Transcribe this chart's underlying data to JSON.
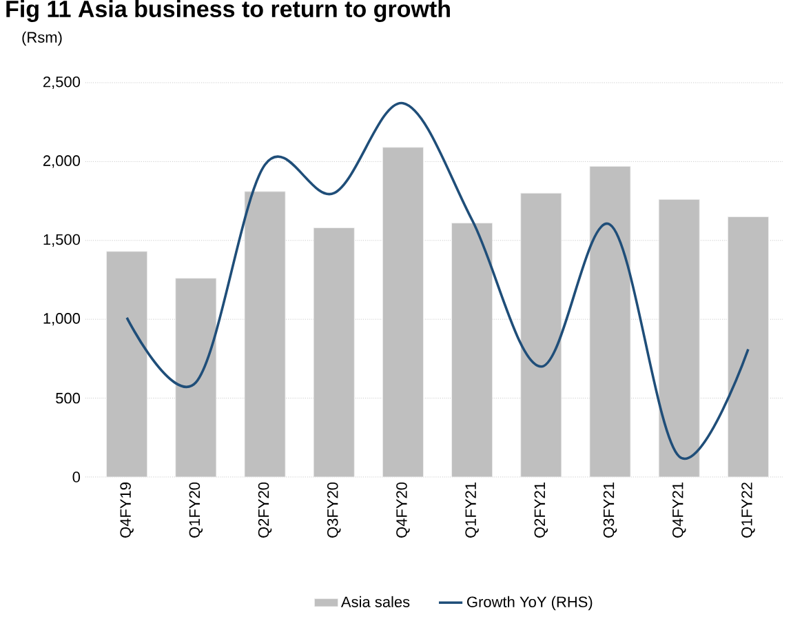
{
  "chart_data": {
    "type": "bar",
    "title": "Fig 11    Asia business to return to growth",
    "ylabel": "(Rsm)",
    "categories": [
      "Q4FY19",
      "Q1FY20",
      "Q2FY20",
      "Q3FY20",
      "Q4FY20",
      "Q1FY21",
      "Q2FY21",
      "Q3FY21",
      "Q4FY21",
      "Q1FY22"
    ],
    "series": [
      {
        "name": "Asia sales",
        "color": "#bfbfbf",
        "values": [
          1430,
          1260,
          1810,
          1580,
          2090,
          1610,
          1800,
          1970,
          1760,
          1650
        ]
      },
      {
        "name": "Growth YoY (RHS)",
        "type": "line",
        "color": "#1f4e79",
        "values": [
          1010,
          600,
          1980,
          1800,
          2370,
          1630,
          700,
          1600,
          130,
          810
        ]
      }
    ],
    "ylim": [
      0,
      2500
    ],
    "yticks": [
      {
        "value": 0,
        "label": "0"
      },
      {
        "value": 500,
        "label": "500"
      },
      {
        "value": 1000,
        "label": "1,000"
      },
      {
        "value": 1500,
        "label": "1,500"
      },
      {
        "value": 2000,
        "label": "2,000"
      },
      {
        "value": 2500,
        "label": "2,500"
      }
    ],
    "grid": "y",
    "legend": "bottom"
  }
}
